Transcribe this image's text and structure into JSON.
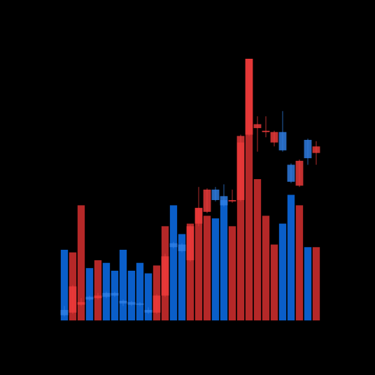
{
  "chart_data": {
    "type": "candlestick",
    "has_volume_overlay": true,
    "title": "",
    "xlabel": "",
    "ylabel": "",
    "background": "#000000",
    "colors": {
      "up_candle": "#2F7FE6",
      "down_candle": "#EE3A3A",
      "volume_up": "#0A5EC9",
      "volume_down": "#B52828"
    },
    "ylim": [
      0,
      100
    ],
    "volume_ylim": [
      0,
      100
    ],
    "candles": [
      {
        "open": 2.0,
        "close": 4.0,
        "high": 5.5,
        "low": 1.5,
        "volume": 27
      },
      {
        "open": 13.0,
        "close": 3.0,
        "high": 13.5,
        "low": 2.5,
        "volume": 26
      },
      {
        "open": 7.0,
        "close": 6.0,
        "high": 8.5,
        "low": 5.5,
        "volume": 44
      },
      {
        "open": 8.0,
        "close": 9.0,
        "high": 9.5,
        "low": 7.5,
        "volume": 20
      },
      {
        "open": 9.5,
        "close": 8.5,
        "high": 10.5,
        "low": 8.0,
        "volume": 23
      },
      {
        "open": 9.0,
        "close": 10.5,
        "high": 11.0,
        "low": 8.5,
        "volume": 22
      },
      {
        "open": 9.5,
        "close": 10.5,
        "high": 11.0,
        "low": 9.0,
        "volume": 19
      },
      {
        "open": 6.5,
        "close": 7.5,
        "high": 8.0,
        "low": 5.5,
        "volume": 27
      },
      {
        "open": 6.0,
        "close": 7.0,
        "high": 7.5,
        "low": 5.5,
        "volume": 19
      },
      {
        "open": 6.0,
        "close": 6.5,
        "high": 7.0,
        "low": 5.5,
        "volume": 22
      },
      {
        "open": 3.0,
        "close": 4.0,
        "high": 5.0,
        "low": 2.5,
        "volume": 18
      },
      {
        "open": 9.5,
        "close": 3.0,
        "high": 10.0,
        "low": 2.5,
        "volume": 21
      },
      {
        "open": 24.5,
        "close": 9.5,
        "high": 25.5,
        "low": 9.0,
        "volume": 36
      },
      {
        "open": 28.0,
        "close": 29.5,
        "high": 30.0,
        "low": 27.5,
        "volume": 44
      },
      {
        "open": 26.5,
        "close": 29.0,
        "high": 29.5,
        "low": 26.0,
        "volume": 33
      },
      {
        "open": 36.0,
        "close": 23.0,
        "high": 36.5,
        "low": 22.5,
        "volume": 37
      },
      {
        "open": 43.0,
        "close": 37.0,
        "high": 51.0,
        "low": 36.0,
        "volume": 43
      },
      {
        "open": 50.0,
        "close": 41.5,
        "high": 50.5,
        "low": 41.0,
        "volume": 40
      },
      {
        "open": 46.0,
        "close": 50.0,
        "high": 51.0,
        "low": 45.5,
        "volume": 39
      },
      {
        "open": 44.0,
        "close": 47.5,
        "high": 52.0,
        "low": 43.5,
        "volume": 46
      },
      {
        "open": 46.0,
        "close": 45.5,
        "high": 50.0,
        "low": 45.0,
        "volume": 36
      },
      {
        "open": 70.5,
        "close": 46.0,
        "high": 71.0,
        "low": 45.5,
        "volume": 68
      },
      {
        "open": 100.0,
        "close": 71.0,
        "high": 100.0,
        "low": 70.5,
        "volume": 100
      },
      {
        "open": 75.0,
        "close": 73.5,
        "high": 78.0,
        "low": 64.5,
        "volume": 54
      },
      {
        "open": 72.5,
        "close": 72.0,
        "high": 78.0,
        "low": 70.0,
        "volume": 40
      },
      {
        "open": 72.0,
        "close": 68.0,
        "high": 72.5,
        "low": 66.5,
        "volume": 29
      },
      {
        "open": 65.0,
        "close": 72.0,
        "high": 80.0,
        "low": 64.5,
        "volume": 37
      },
      {
        "open": 53.0,
        "close": 59.5,
        "high": 60.0,
        "low": 52.5,
        "volume": 48
      },
      {
        "open": 61.0,
        "close": 51.5,
        "high": 61.5,
        "low": 51.0,
        "volume": 44
      },
      {
        "open": 62.0,
        "close": 69.0,
        "high": 69.5,
        "low": 59.5,
        "volume": 28
      },
      {
        "open": 66.5,
        "close": 64.0,
        "high": 68.5,
        "low": 59.5,
        "volume": 28
      }
    ]
  }
}
